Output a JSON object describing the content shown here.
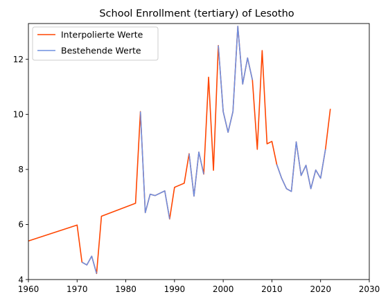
{
  "chart_data": {
    "type": "line",
    "title": "School Enrollment (tertiary) of Lesotho",
    "xlabel": "",
    "ylabel": "",
    "xlim": [
      1960,
      2030
    ],
    "ylim": [
      4,
      13.3
    ],
    "x_ticks": [
      1960,
      1970,
      1980,
      1990,
      2000,
      2010,
      2020,
      2030
    ],
    "y_ticks": [
      4,
      6,
      8,
      10,
      12
    ],
    "grid": false,
    "legend_position": "top-left",
    "series": [
      {
        "name": "Interpolierte Werte",
        "color": "#ff4500",
        "points": [
          [
            1960,
            5.4
          ],
          [
            1970,
            5.98
          ],
          [
            1971,
            4.63
          ],
          [
            1972,
            4.53
          ],
          [
            1973,
            4.85
          ],
          [
            1974,
            4.22
          ],
          [
            1975,
            6.3
          ],
          [
            1982,
            6.77
          ],
          [
            1983,
            10.1
          ],
          [
            1984,
            6.43
          ],
          [
            1985,
            7.1
          ],
          [
            1986,
            7.05
          ],
          [
            1988,
            7.22
          ],
          [
            1989,
            6.2
          ],
          [
            1990,
            7.35
          ],
          [
            1992,
            7.5
          ],
          [
            1993,
            8.57
          ],
          [
            1994,
            7.03
          ],
          [
            1995,
            8.63
          ],
          [
            1996,
            7.83
          ],
          [
            1997,
            11.35
          ],
          [
            1998,
            7.97
          ],
          [
            1999,
            12.5
          ],
          [
            2000,
            10.1
          ],
          [
            2001,
            9.35
          ],
          [
            2002,
            10.1
          ],
          [
            2003,
            13.2
          ],
          [
            2004,
            11.1
          ],
          [
            2005,
            12.05
          ],
          [
            2006,
            11.25
          ],
          [
            2007,
            8.73
          ],
          [
            2008,
            12.32
          ],
          [
            2009,
            8.93
          ],
          [
            2010,
            9.02
          ],
          [
            2011,
            8.18
          ],
          [
            2012,
            7.68
          ],
          [
            2013,
            7.3
          ],
          [
            2014,
            7.2
          ],
          [
            2015,
            9.0
          ],
          [
            2016,
            7.78
          ],
          [
            2017,
            8.15
          ],
          [
            2018,
            7.3
          ],
          [
            2019,
            7.98
          ],
          [
            2020,
            7.68
          ],
          [
            2021,
            8.73
          ],
          [
            2022,
            10.2
          ]
        ]
      },
      {
        "name": "Bestehende Werte",
        "color": "#6f8fdf",
        "segments": [
          [
            [
              1971,
              4.63
            ],
            [
              1972,
              4.53
            ],
            [
              1973,
              4.85
            ],
            [
              1974,
              4.22
            ]
          ],
          [
            [
              1983,
              10.1
            ],
            [
              1984,
              6.43
            ],
            [
              1985,
              7.1
            ],
            [
              1986,
              7.05
            ],
            [
              1988,
              7.22
            ],
            [
              1989,
              6.2
            ]
          ],
          [
            [
              1993,
              8.57
            ],
            [
              1994,
              7.03
            ],
            [
              1995,
              8.63
            ],
            [
              1996,
              7.83
            ]
          ],
          [
            [
              1999,
              12.5
            ],
            [
              2000,
              10.1
            ],
            [
              2001,
              9.35
            ],
            [
              2002,
              10.1
            ],
            [
              2003,
              13.2
            ],
            [
              2004,
              11.1
            ],
            [
              2005,
              12.05
            ],
            [
              2006,
              11.25
            ]
          ],
          [
            [
              2011,
              8.18
            ],
            [
              2012,
              7.68
            ],
            [
              2013,
              7.3
            ],
            [
              2014,
              7.2
            ],
            [
              2015,
              9.0
            ],
            [
              2016,
              7.78
            ],
            [
              2017,
              8.15
            ],
            [
              2018,
              7.3
            ],
            [
              2019,
              7.98
            ],
            [
              2020,
              7.68
            ],
            [
              2021,
              8.73
            ]
          ]
        ]
      }
    ]
  }
}
